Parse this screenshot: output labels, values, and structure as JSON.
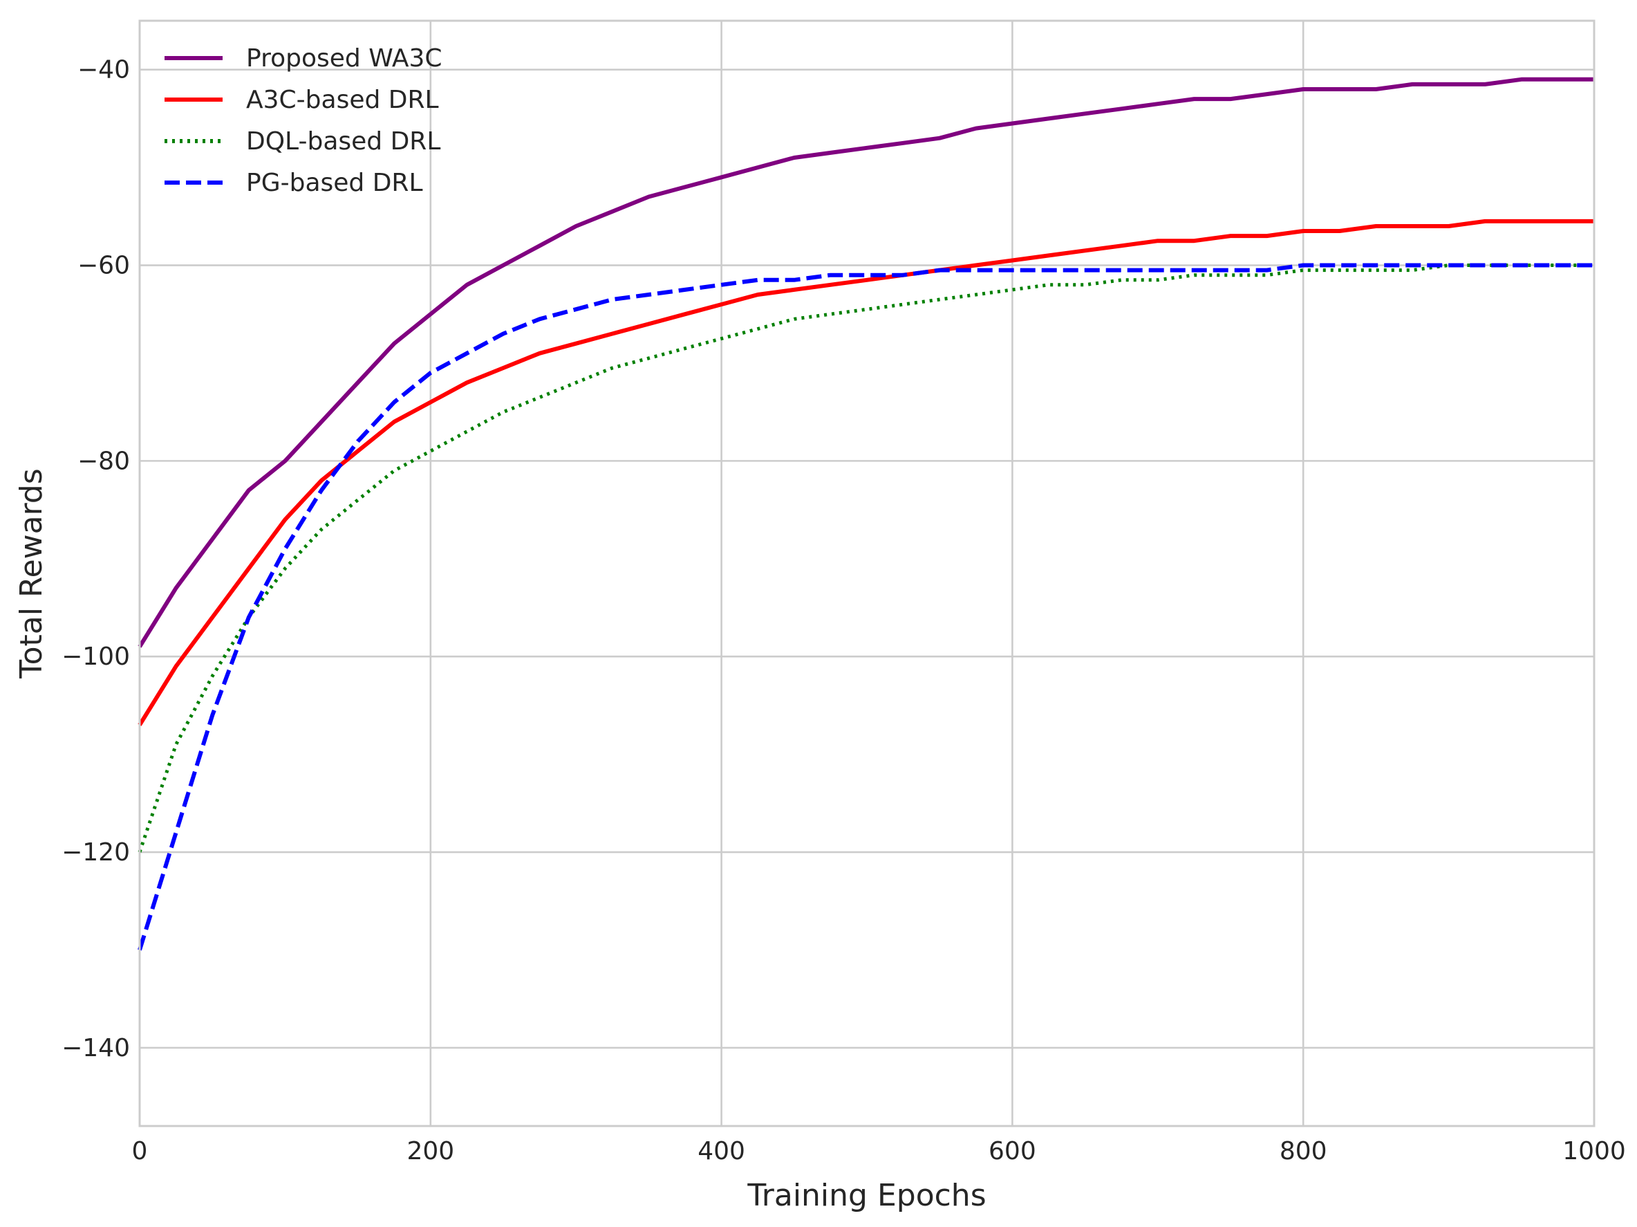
{
  "chart_data": {
    "type": "line",
    "title": "",
    "xlabel": "Training Epochs",
    "ylabel": "Total Rewards",
    "xlim": [
      0,
      1000
    ],
    "ylim": [
      -148,
      -35
    ],
    "xticks": [
      0,
      200,
      400,
      600,
      800,
      1000
    ],
    "yticks": [
      -140,
      -120,
      -100,
      -80,
      -60,
      -40
    ],
    "xtick_labels": [
      "0",
      "200",
      "400",
      "600",
      "800",
      "1000"
    ],
    "ytick_labels": [
      "−140",
      "−120",
      "−100",
      "−80",
      "−60",
      "−40"
    ],
    "grid": true,
    "legend_position": "top-left",
    "series": [
      {
        "name": "Proposed WA3C",
        "color": "#800080",
        "style": "solid",
        "x": [
          0,
          25,
          50,
          75,
          100,
          125,
          150,
          175,
          200,
          225,
          250,
          275,
          300,
          325,
          350,
          375,
          400,
          425,
          450,
          475,
          500,
          525,
          550,
          575,
          600,
          625,
          650,
          675,
          700,
          725,
          750,
          775,
          800,
          825,
          850,
          875,
          900,
          925,
          950,
          975,
          1000
        ],
        "y": [
          -99,
          -93,
          -88,
          -83,
          -80,
          -76,
          -72,
          -68,
          -65,
          -62,
          -60,
          -58,
          -56,
          -54.5,
          -53,
          -52,
          -51,
          -50,
          -49,
          -48.5,
          -48,
          -47.5,
          -47,
          -46,
          -45.5,
          -45,
          -44.5,
          -44,
          -43.5,
          -43,
          -43,
          -42.5,
          -42,
          -42,
          -42,
          -41.5,
          -41.5,
          -41.5,
          -41,
          -41,
          -41
        ]
      },
      {
        "name": "A3C-based DRL",
        "color": "#ff0000",
        "style": "solid",
        "x": [
          0,
          25,
          50,
          75,
          100,
          125,
          150,
          175,
          200,
          225,
          250,
          275,
          300,
          325,
          350,
          375,
          400,
          425,
          450,
          475,
          500,
          525,
          550,
          575,
          600,
          625,
          650,
          675,
          700,
          725,
          750,
          775,
          800,
          825,
          850,
          875,
          900,
          925,
          950,
          975,
          1000
        ],
        "y": [
          -107,
          -101,
          -96,
          -91,
          -86,
          -82,
          -79,
          -76,
          -74,
          -72,
          -70.5,
          -69,
          -68,
          -67,
          -66,
          -65,
          -64,
          -63,
          -62.5,
          -62,
          -61.5,
          -61,
          -60.5,
          -60,
          -59.5,
          -59,
          -58.5,
          -58,
          -57.5,
          -57.5,
          -57,
          -57,
          -56.5,
          -56.5,
          -56,
          -56,
          -56,
          -55.5,
          -55.5,
          -55.5,
          -55.5
        ]
      },
      {
        "name": "DQL-based DRL",
        "color": "#008000",
        "style": "dotted",
        "x": [
          0,
          25,
          50,
          75,
          100,
          125,
          150,
          175,
          200,
          225,
          250,
          275,
          300,
          325,
          350,
          375,
          400,
          425,
          450,
          475,
          500,
          525,
          550,
          575,
          600,
          625,
          650,
          675,
          700,
          725,
          750,
          775,
          800,
          825,
          850,
          875,
          900,
          925,
          950,
          975,
          1000
        ],
        "y": [
          -120,
          -109,
          -102,
          -96,
          -91,
          -87,
          -84,
          -81,
          -79,
          -77,
          -75,
          -73.5,
          -72,
          -70.5,
          -69.5,
          -68.5,
          -67.5,
          -66.5,
          -65.5,
          -65,
          -64.5,
          -64,
          -63.5,
          -63,
          -62.5,
          -62,
          -62,
          -61.5,
          -61.5,
          -61,
          -61,
          -61,
          -60.5,
          -60.5,
          -60.5,
          -60.5,
          -60,
          -60,
          -60,
          -60,
          -60
        ]
      },
      {
        "name": "PG-based DRL",
        "color": "#0000ff",
        "style": "dashed",
        "x": [
          0,
          25,
          50,
          75,
          100,
          125,
          150,
          175,
          200,
          225,
          250,
          275,
          300,
          325,
          350,
          375,
          400,
          425,
          450,
          475,
          500,
          525,
          550,
          575,
          600,
          625,
          650,
          675,
          700,
          725,
          750,
          775,
          800,
          825,
          850,
          875,
          900,
          925,
          950,
          975,
          1000
        ],
        "y": [
          -130,
          -118,
          -106,
          -96,
          -89,
          -83,
          -78,
          -74,
          -71,
          -69,
          -67,
          -65.5,
          -64.5,
          -63.5,
          -63,
          -62.5,
          -62,
          -61.5,
          -61.5,
          -61,
          -61,
          -61,
          -60.5,
          -60.5,
          -60.5,
          -60.5,
          -60.5,
          -60.5,
          -60.5,
          -60.5,
          -60.5,
          -60.5,
          -60,
          -60,
          -60,
          -60,
          -60,
          -60,
          -60,
          -60,
          -60
        ]
      }
    ]
  }
}
